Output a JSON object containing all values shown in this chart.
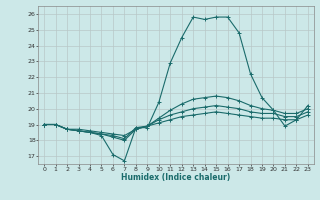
{
  "xlabel": "Humidex (Indice chaleur)",
  "bg_color": "#cce8e8",
  "grid_color": "#b8c8c8",
  "line_color": "#1a6b6b",
  "xlim": [
    -0.5,
    23.5
  ],
  "ylim": [
    16.5,
    26.5
  ],
  "yticks": [
    17,
    18,
    19,
    20,
    21,
    22,
    23,
    24,
    25,
    26
  ],
  "xticks": [
    0,
    1,
    2,
    3,
    4,
    5,
    6,
    7,
    8,
    9,
    10,
    11,
    12,
    13,
    14,
    15,
    16,
    17,
    18,
    19,
    20,
    21,
    22,
    23
  ],
  "series": [
    [
      19.0,
      19.0,
      18.7,
      18.6,
      18.5,
      18.3,
      17.1,
      16.7,
      18.8,
      18.8,
      20.4,
      22.9,
      24.5,
      25.8,
      25.65,
      25.8,
      25.8,
      24.8,
      22.2,
      20.7,
      19.9,
      18.9,
      19.3,
      20.2
    ],
    [
      19.0,
      19.0,
      18.7,
      18.6,
      18.5,
      18.4,
      18.2,
      18.0,
      18.7,
      18.9,
      19.4,
      19.9,
      20.3,
      20.6,
      20.7,
      20.8,
      20.7,
      20.5,
      20.2,
      20.0,
      19.9,
      19.7,
      19.7,
      20.0
    ],
    [
      19.0,
      19.0,
      18.7,
      18.6,
      18.5,
      18.4,
      18.3,
      18.1,
      18.8,
      18.9,
      19.3,
      19.6,
      19.8,
      20.0,
      20.1,
      20.2,
      20.1,
      20.0,
      19.8,
      19.7,
      19.7,
      19.5,
      19.5,
      19.8
    ],
    [
      19.0,
      19.0,
      18.7,
      18.7,
      18.6,
      18.5,
      18.4,
      18.3,
      18.7,
      18.9,
      19.1,
      19.3,
      19.5,
      19.6,
      19.7,
      19.8,
      19.7,
      19.6,
      19.5,
      19.4,
      19.4,
      19.3,
      19.3,
      19.6
    ]
  ]
}
